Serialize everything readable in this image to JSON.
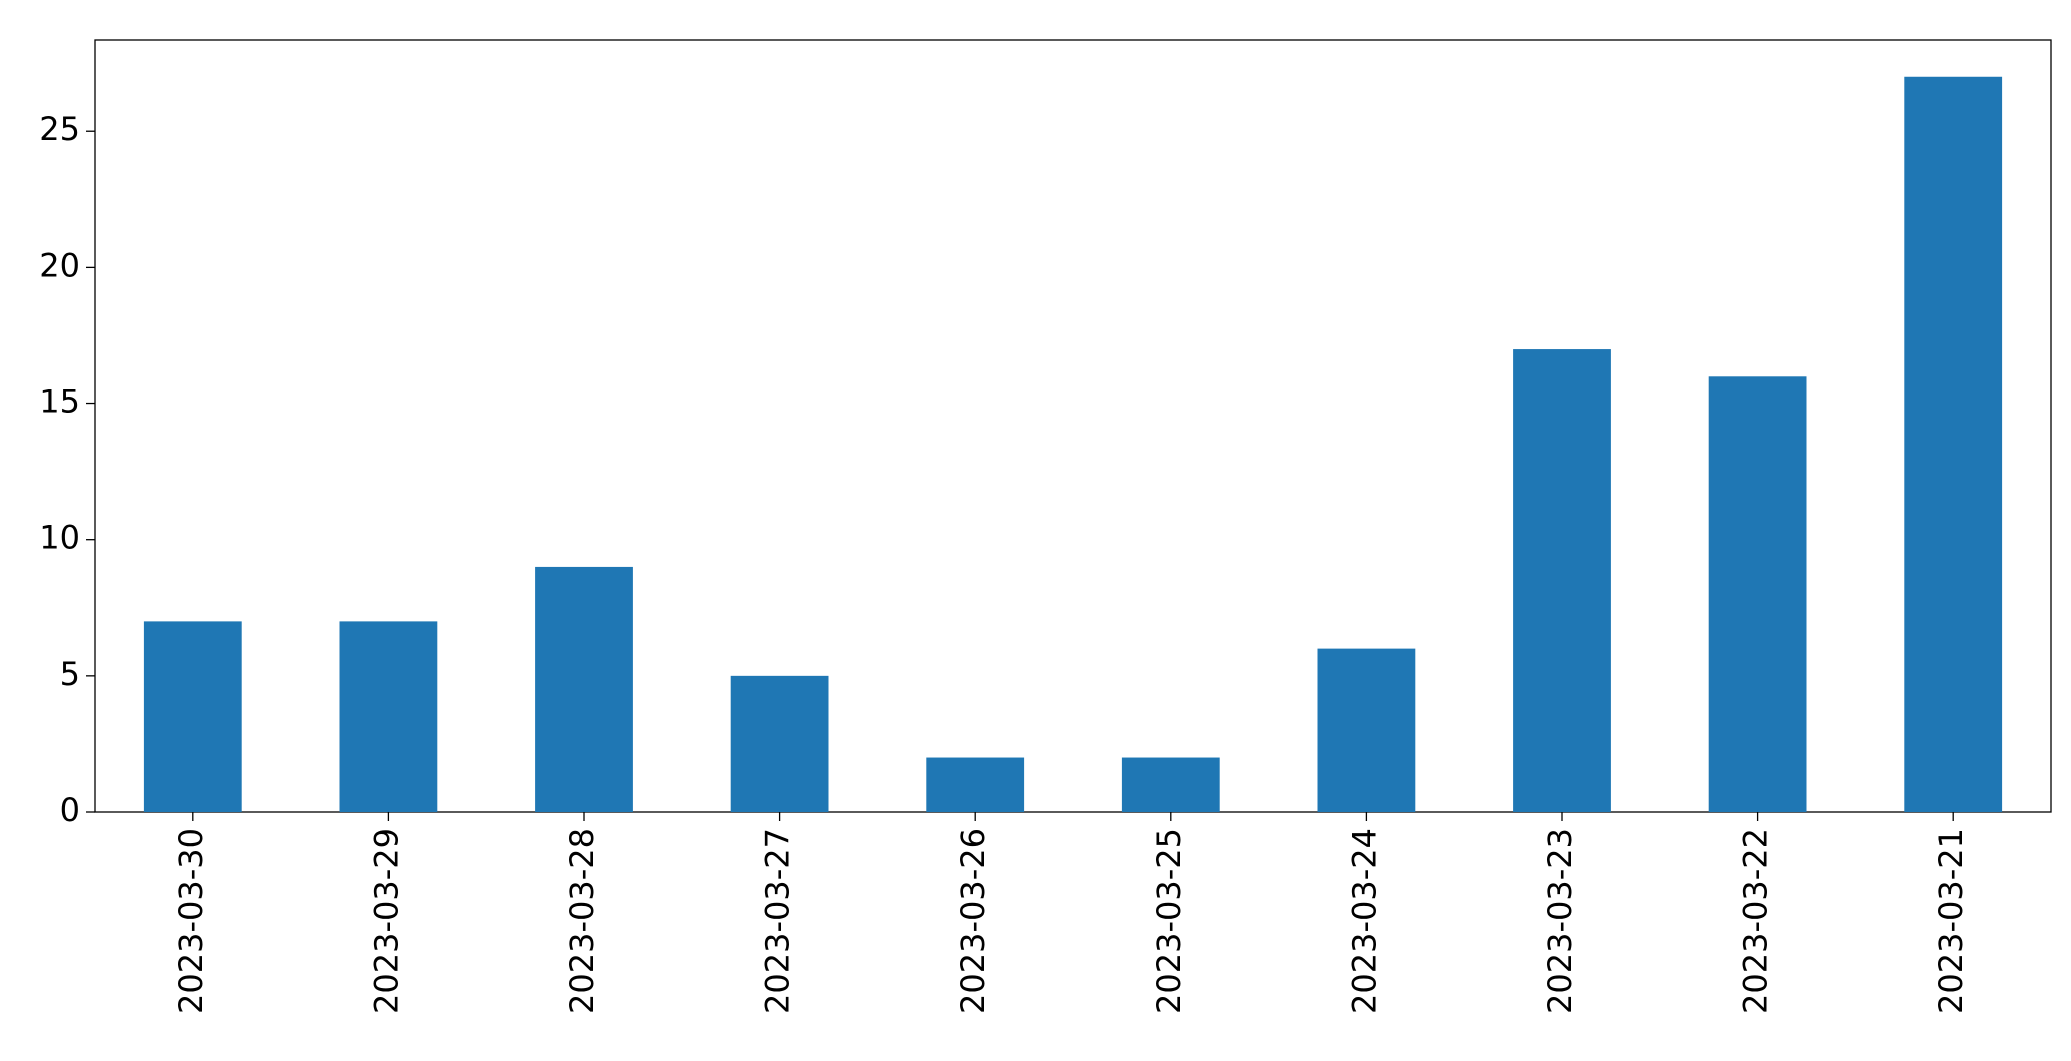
{
  "chart_data": {
    "type": "bar",
    "categories": [
      "2023-03-30",
      "2023-03-29",
      "2023-03-28",
      "2023-03-27",
      "2023-03-26",
      "2023-03-25",
      "2023-03-24",
      "2023-03-23",
      "2023-03-22",
      "2023-03-21"
    ],
    "values": [
      7,
      7,
      9,
      5,
      2,
      2,
      6,
      17,
      16,
      27
    ],
    "color": "#1f77b4",
    "ylim": [
      0,
      28.35
    ],
    "yticks": [
      0,
      5,
      10,
      15,
      20,
      25
    ],
    "grid": false
  }
}
